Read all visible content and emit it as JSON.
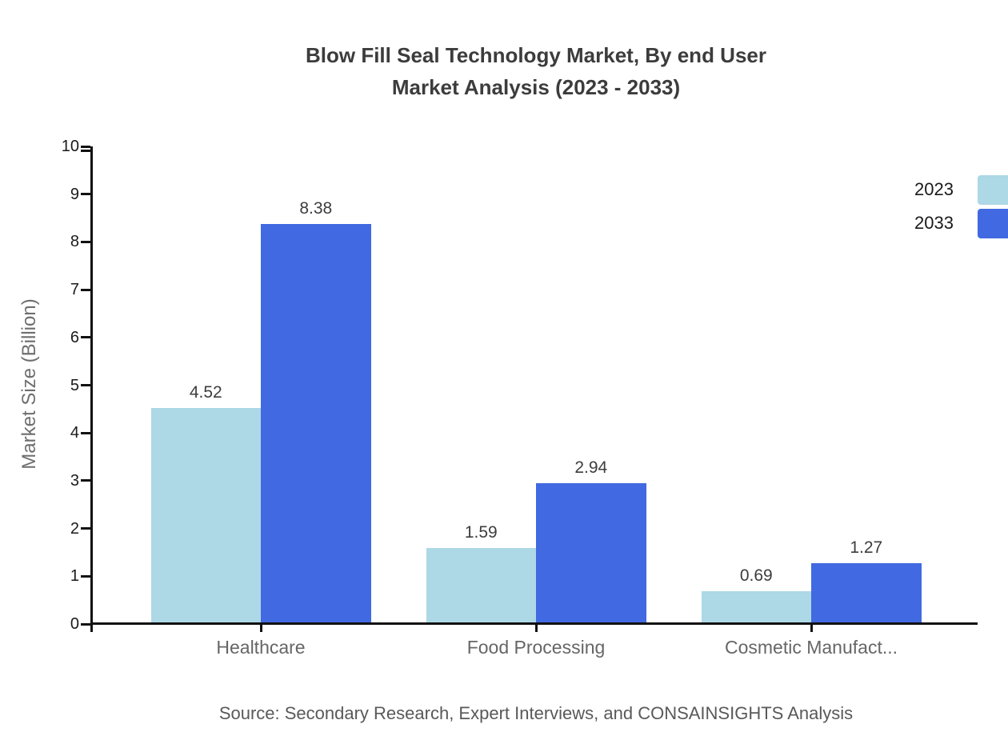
{
  "header": {
    "line1": "Blow Fill Seal Technology Market, By end User",
    "line2": "Market Analysis (2023 - 2033)"
  },
  "source_note": "Source: Secondary Research, Expert Interviews, and CONSAINSIGHTS Analysis",
  "chart_data": {
    "type": "bar",
    "title": "Blow Fill Seal Technology Market, By end User Market Analysis (2023 - 2033)",
    "categories": [
      "Healthcare",
      "Food Processing",
      "Cosmetic Manufact..."
    ],
    "series": [
      {
        "name": "2023",
        "color": "#ADD8E6",
        "values": [
          4.52,
          1.59,
          0.69
        ],
        "labels": [
          "4.52",
          "1.59",
          "0.69"
        ]
      },
      {
        "name": "2033",
        "color": "#4169E1",
        "values": [
          8.38,
          2.94,
          1.27
        ],
        "labels": [
          "8.38",
          "2.94",
          "1.27"
        ]
      }
    ],
    "xlabel": "",
    "ylabel": "Market Size (Billion)",
    "ylim": [
      0,
      10
    ],
    "yticks": [
      0,
      1,
      2,
      3,
      4,
      5,
      6,
      7,
      8,
      9,
      10
    ],
    "grid": false,
    "legend_position": "top-right",
    "colors": {
      "axis": "#111111",
      "tick_label": "#1a1a1a",
      "value_label": "#3d3d3d",
      "category_label": "#666666",
      "title": "#3c3c3c",
      "source": "#595959",
      "ylabel": "#6e6e6e",
      "background": "#ffffff"
    }
  }
}
